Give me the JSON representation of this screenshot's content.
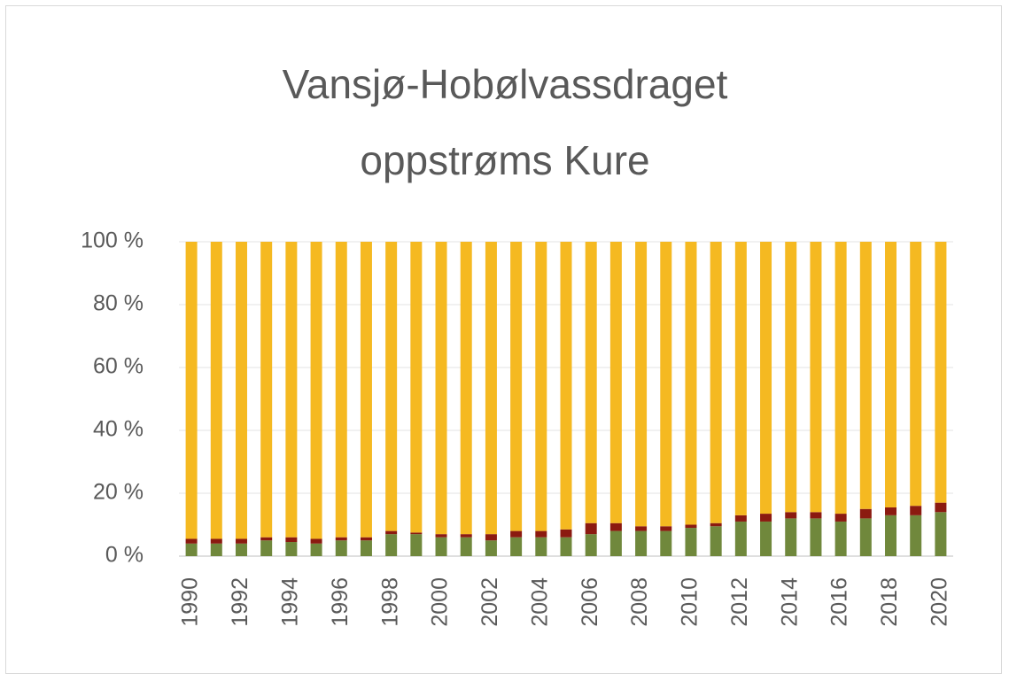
{
  "chart_data": {
    "type": "stacked_bar_percent",
    "title": "Vansjø-Hobølvassdraget oppstrøms Kure",
    "categories": [
      "1990",
      null,
      "1992",
      null,
      "1994",
      null,
      "1996",
      null,
      "1998",
      null,
      "2000",
      null,
      "2002",
      null,
      "2004",
      null,
      "2006",
      null,
      "2008",
      null,
      "2010",
      null,
      "2012",
      null,
      "2014",
      null,
      "2016",
      null,
      "2018",
      null,
      "2020"
    ],
    "series": [
      {
        "color": "#70883c",
        "values": [
          4,
          4,
          4,
          5,
          4.5,
          4,
          5,
          5,
          7,
          7,
          6,
          6,
          5,
          6,
          6,
          6,
          7,
          8,
          8,
          8,
          9,
          9.5,
          11,
          11,
          12,
          12,
          11,
          12,
          13,
          13,
          14
        ]
      },
      {
        "color": "#8b1a10",
        "values": [
          1.5,
          1.5,
          1.5,
          1,
          1.5,
          1.5,
          1,
          1,
          1,
          0.5,
          1,
          1,
          2,
          2,
          2,
          2.5,
          3.5,
          2.5,
          1.5,
          1.5,
          1,
          1,
          2,
          2.5,
          2,
          2,
          2.5,
          3,
          2.5,
          3,
          3
        ]
      },
      {
        "color": "#f5b921",
        "values": [
          94.5,
          94.5,
          94.5,
          94,
          94,
          94.5,
          94,
          94,
          92,
          92.5,
          93,
          93,
          93,
          92,
          92,
          91.5,
          89.5,
          89.5,
          90.5,
          90.5,
          90,
          89.5,
          87,
          86.5,
          86,
          86,
          86.5,
          85,
          84.5,
          84,
          83
        ]
      }
    ],
    "ylim": [
      0,
      100
    ],
    "yticks": [
      {
        "value": 0,
        "label": "0 %"
      },
      {
        "value": 20,
        "label": "20 %"
      },
      {
        "value": 40,
        "label": "40 %"
      },
      {
        "value": 60,
        "label": "60 %"
      },
      {
        "value": 80,
        "label": "80 %"
      },
      {
        "value": 100,
        "label": "100 %"
      }
    ],
    "grid": true
  }
}
